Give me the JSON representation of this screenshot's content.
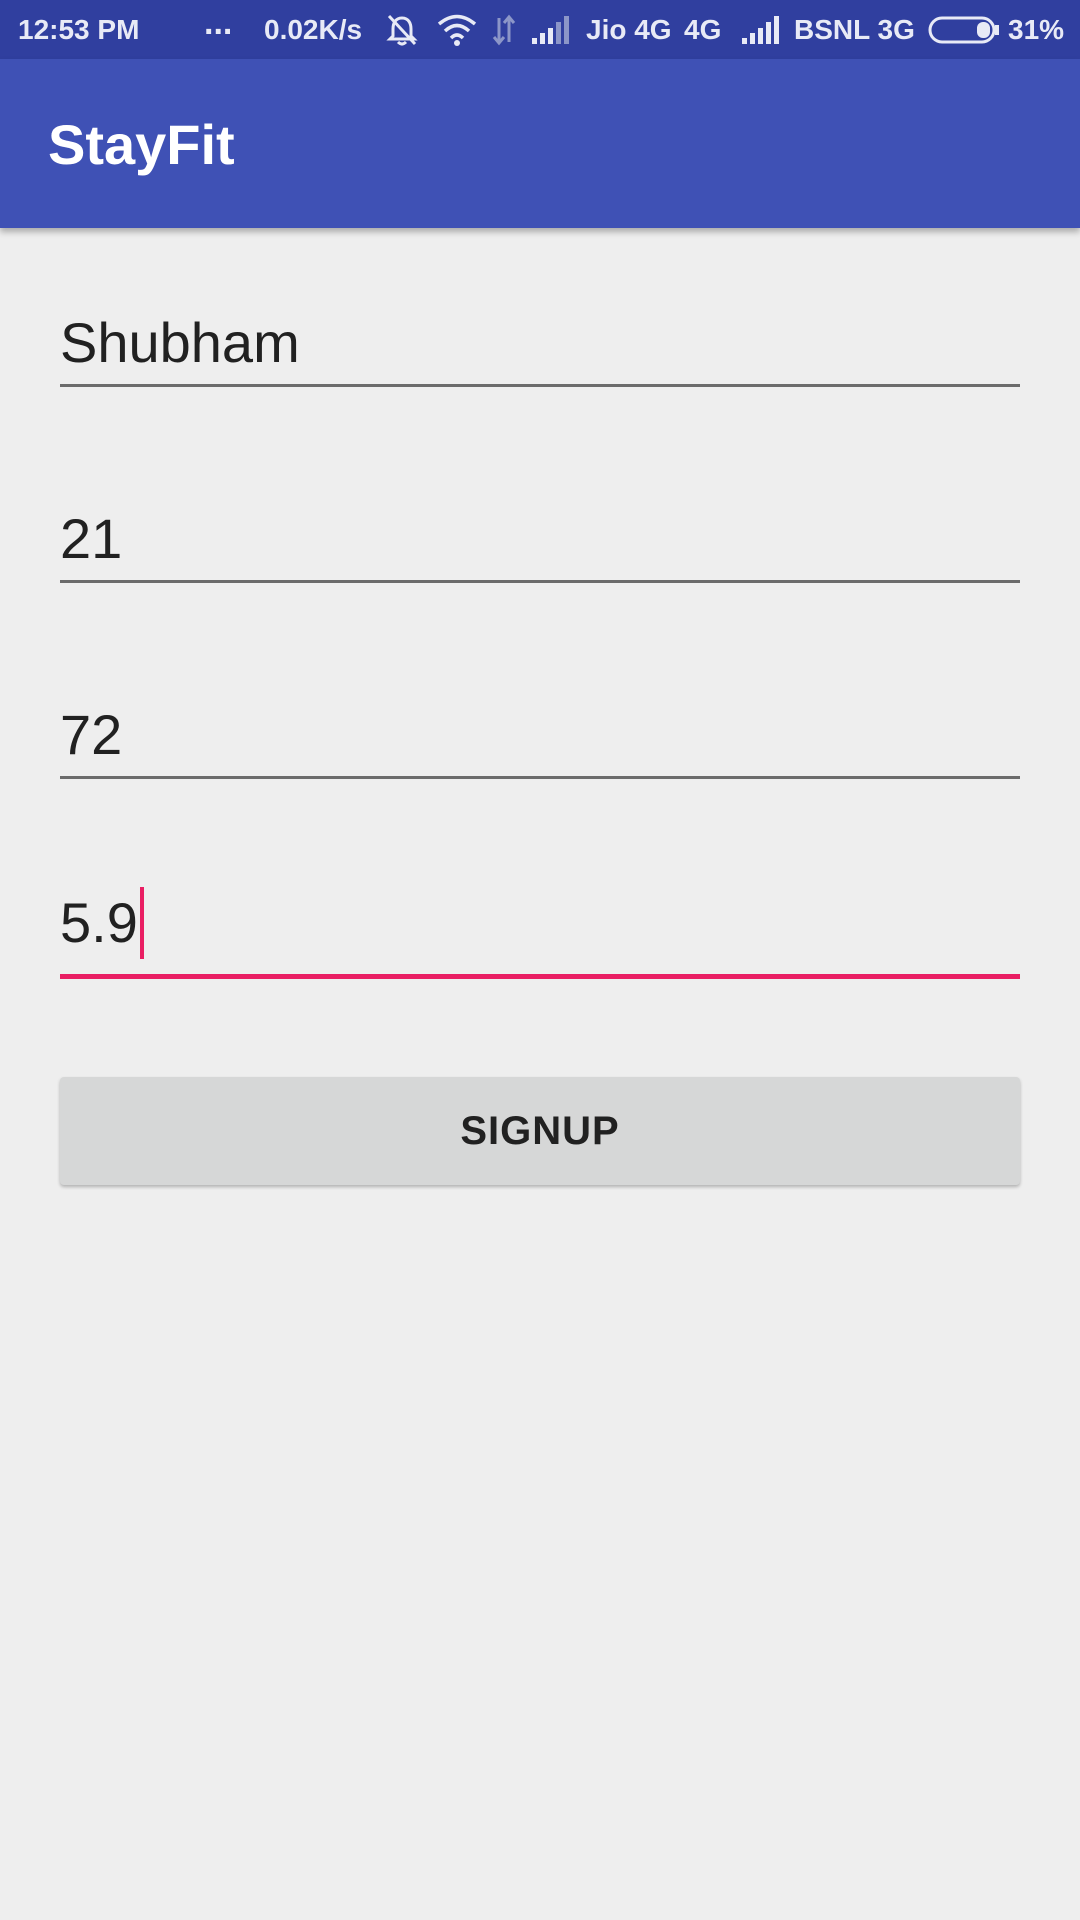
{
  "status_bar": {
    "time": "12:53 PM",
    "more": "...",
    "net_speed": "0.02K/s",
    "carrier1": "Jio 4G",
    "network1": "4G",
    "carrier2": "BSNL 3G",
    "battery": "31%",
    "battery_level": 0.31,
    "icons": [
      "alarm-off-icon",
      "wifi-icon",
      "data-arrows-icon",
      "signal-icon",
      "signal-icon",
      "battery-icon"
    ]
  },
  "app_bar": {
    "title": "StayFit"
  },
  "form": {
    "name_value": "Shubham",
    "age_value": "21",
    "weight_value": "72",
    "height_value": "5.9",
    "signup_label": "SIGNUP"
  },
  "colors": {
    "status_bar": "#303f9f",
    "primary": "#3f51b5",
    "accent": "#e91e63",
    "background": "#eeeeee",
    "button": "#d6d7d7"
  }
}
